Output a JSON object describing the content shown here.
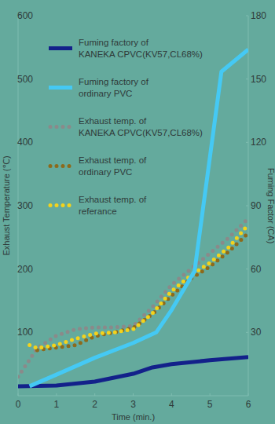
{
  "chart_data": {
    "type": "line",
    "x_label": "Time (min.)",
    "y_label": "Exhaust Temperature (℃)",
    "y2_label": "Fuming Factor (CA)",
    "xlim": [
      0,
      6
    ],
    "xticks": [
      0,
      1,
      2,
      3,
      4,
      5,
      6
    ],
    "ylim": [
      0,
      600
    ],
    "yticks": [
      100,
      200,
      300,
      400,
      500,
      600
    ],
    "y2lim": [
      0,
      180
    ],
    "y2ticks": [
      30,
      60,
      90,
      120,
      150,
      180
    ],
    "legend": "upper left",
    "grid": false,
    "series": [
      {
        "name": "Fuming factory of\nKANEKA CPVC(KV57,CL68%)",
        "color": "#13218a",
        "line_style": "solid",
        "axis": "y2",
        "x": [
          0,
          1,
          2,
          3,
          3.5,
          4,
          5,
          6
        ],
        "values": [
          4.5,
          4.8,
          6.7,
          10.4,
          13.4,
          15,
          16.8,
          18.3
        ]
      },
      {
        "name": "Fuming factory of\nordinary PVC",
        "color": "#45c9f4",
        "line_style": "solid",
        "axis": "y2",
        "x": [
          0.3,
          1,
          2,
          3,
          3.6,
          4,
          4.6,
          5,
          5.3,
          6
        ],
        "values": [
          4.5,
          10,
          18,
          25,
          30,
          40.6,
          59,
          113,
          153.5,
          164
        ]
      },
      {
        "name": "Exhaust temp. of\nKANEKA CPVC(KV57,CL68%)",
        "color": "#8a8a8a",
        "line_style": "dotted",
        "x": [
          0,
          0.5,
          1,
          1.5,
          2,
          2.5,
          3,
          3.5,
          4,
          4.5,
          5,
          5.5,
          6
        ],
        "values": [
          30,
          75,
          95,
          105,
          108,
          108,
          110,
          140,
          175,
          200,
          225,
          250,
          280
        ]
      },
      {
        "name": "Exhaust temp. of\nordinary PVC",
        "color": "#8c6a1c",
        "line_style": "dotted",
        "x": [
          0.5,
          1,
          1.5,
          2,
          2.5,
          3,
          3.5,
          4,
          4.5,
          5,
          5.5,
          6
        ],
        "values": [
          72,
          76,
          80,
          94,
          100,
          107,
          129,
          158,
          185,
          204,
          228,
          257
        ]
      },
      {
        "name": "Exhaust temp. of\nreferance",
        "color": "#f4d31c",
        "line_style": "dotted",
        "x": [
          0.3,
          0.5,
          1,
          1.5,
          2,
          2.5,
          3,
          3.5,
          4,
          4.5,
          5,
          5.5,
          6
        ],
        "values": [
          80,
          75,
          80,
          90,
          98,
          100,
          105,
          130,
          165,
          190,
          210,
          235,
          270
        ]
      }
    ]
  }
}
